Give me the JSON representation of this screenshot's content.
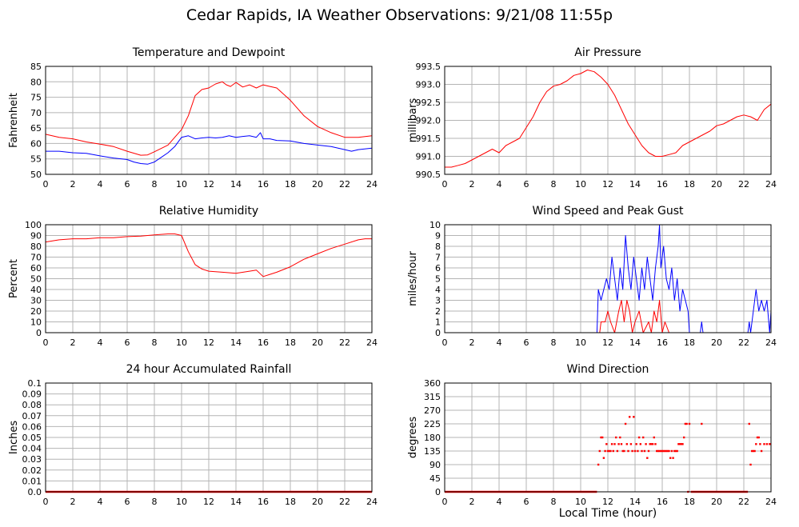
{
  "page": {
    "title": "Cedar Rapids, IA Weather Observations: 9/21/08 11:55p",
    "xlabel": "Local Time (hour)"
  },
  "chart_data": [
    {
      "id": "temp",
      "type": "line",
      "title": "Temperature and Dewpoint",
      "ylabel": "Fahrenheit",
      "xlim": [
        0,
        24
      ],
      "ylim": [
        50,
        85
      ],
      "xticks": [
        0,
        2,
        4,
        6,
        8,
        10,
        12,
        14,
        16,
        18,
        20,
        22,
        24
      ],
      "yticks": [
        50,
        55,
        60,
        65,
        70,
        75,
        80,
        85
      ],
      "ytick_labels": [
        "50",
        "55",
        "60",
        "65",
        "70",
        "75",
        "80",
        "85"
      ],
      "grid": true,
      "series": [
        {
          "color": "#ff0000",
          "style": "line",
          "x": [
            0,
            1,
            2,
            3,
            4,
            5,
            6,
            7,
            7.5,
            8,
            9,
            9.5,
            10,
            10.5,
            11,
            11.5,
            12,
            12.5,
            13,
            13.3,
            13.6,
            14,
            14.5,
            15,
            15.5,
            16,
            16.5,
            17,
            18,
            19,
            20,
            21,
            22,
            22.5,
            23,
            24
          ],
          "y": [
            63,
            62,
            61.5,
            60.5,
            59.8,
            59,
            57.5,
            56.2,
            56.3,
            57.3,
            59.5,
            62,
            64.5,
            69,
            75.5,
            77.5,
            78,
            79.3,
            80,
            79,
            78.5,
            79.8,
            78.3,
            79,
            78,
            79,
            78.5,
            78,
            74,
            69,
            65.5,
            63.5,
            62,
            62,
            62,
            62.5
          ]
        },
        {
          "color": "#0000ff",
          "style": "line",
          "x": [
            0,
            1,
            2,
            3,
            4,
            5,
            6,
            6.5,
            7,
            7.5,
            8,
            8.5,
            9,
            9.5,
            10,
            10.5,
            11,
            11.5,
            12,
            12.5,
            13,
            13.5,
            14,
            14.5,
            15,
            15.5,
            15.8,
            16,
            16.5,
            17,
            18,
            19,
            20,
            21,
            22,
            22.5,
            23,
            24
          ],
          "y": [
            57.5,
            57.5,
            57,
            56.8,
            56,
            55.3,
            54.8,
            54,
            53.5,
            53.3,
            54,
            55.5,
            57,
            59,
            62,
            62.5,
            61.5,
            61.8,
            62,
            61.8,
            62,
            62.5,
            62,
            62.3,
            62.5,
            62,
            63.5,
            61.5,
            61.5,
            61,
            60.8,
            60,
            59.5,
            59,
            58,
            57.5,
            58,
            58.5
          ]
        }
      ]
    },
    {
      "id": "pressure",
      "type": "line",
      "title": "Air Pressure",
      "ylabel": "millibars",
      "xlim": [
        0,
        24
      ],
      "ylim": [
        990.5,
        993.5
      ],
      "xticks": [
        0,
        2,
        4,
        6,
        8,
        10,
        12,
        14,
        16,
        18,
        20,
        22,
        24
      ],
      "yticks": [
        990.5,
        991,
        991.5,
        992,
        992.5,
        993,
        993.5
      ],
      "ytick_labels": [
        "990.5",
        "991.0",
        "991.5",
        "992.0",
        "992.5",
        "993.0",
        "993.5"
      ],
      "grid": true,
      "series": [
        {
          "color": "#ff0000",
          "style": "line",
          "x": [
            0,
            0.5,
            1,
            1.5,
            2,
            2.5,
            3,
            3.5,
            4,
            4.5,
            5,
            5.5,
            6,
            6.5,
            7,
            7.5,
            8,
            8.5,
            9,
            9.5,
            10,
            10.5,
            11,
            11.5,
            12,
            12.5,
            13,
            13.5,
            14,
            14.5,
            15,
            15.5,
            16,
            16.5,
            17,
            17.5,
            18,
            18.5,
            19,
            19.5,
            20,
            20.5,
            21,
            21.5,
            22,
            22.5,
            23,
            23.5,
            24
          ],
          "y": [
            990.7,
            990.7,
            990.75,
            990.8,
            990.9,
            991.0,
            991.1,
            991.2,
            991.1,
            991.3,
            991.4,
            991.5,
            991.8,
            992.1,
            992.5,
            992.8,
            992.95,
            993.0,
            993.1,
            993.25,
            993.3,
            993.4,
            993.35,
            993.2,
            993.0,
            992.7,
            992.3,
            991.9,
            991.6,
            991.3,
            991.1,
            991.0,
            991.0,
            991.05,
            991.1,
            991.3,
            991.4,
            991.5,
            991.6,
            991.7,
            991.85,
            991.9,
            992.0,
            992.1,
            992.15,
            992.1,
            992.0,
            992.3,
            992.45
          ]
        }
      ]
    },
    {
      "id": "rh",
      "type": "line",
      "title": "Relative Humidity",
      "ylabel": "Percent",
      "xlim": [
        0,
        24
      ],
      "ylim": [
        0,
        100
      ],
      "xticks": [
        0,
        2,
        4,
        6,
        8,
        10,
        12,
        14,
        16,
        18,
        20,
        22,
        24
      ],
      "yticks": [
        0,
        10,
        20,
        30,
        40,
        50,
        60,
        70,
        80,
        90,
        100
      ],
      "ytick_labels": [
        "0",
        "10",
        "20",
        "30",
        "40",
        "50",
        "60",
        "70",
        "80",
        "90",
        "100"
      ],
      "grid": true,
      "series": [
        {
          "color": "#ff0000",
          "style": "line",
          "x": [
            0,
            0.5,
            1,
            2,
            3,
            4,
            5,
            6,
            7,
            8,
            9,
            9.5,
            10,
            10.5,
            11,
            11.5,
            12,
            13,
            14,
            15,
            15.5,
            16,
            16.5,
            17,
            18,
            19,
            20,
            21,
            22,
            23,
            23.5,
            24
          ],
          "y": [
            84,
            85,
            86,
            87,
            87,
            88,
            88,
            89,
            89.5,
            90.5,
            91.5,
            91.5,
            90,
            75,
            63,
            59,
            57,
            56,
            55,
            57,
            58,
            52,
            54,
            56,
            61,
            68,
            73,
            78,
            82,
            86,
            87,
            87
          ]
        }
      ]
    },
    {
      "id": "wind",
      "type": "line",
      "title": "Wind Speed and Peak Gust",
      "ylabel": "miles/hour",
      "xlim": [
        0,
        24
      ],
      "ylim": [
        0,
        10
      ],
      "xticks": [
        0,
        2,
        4,
        6,
        8,
        10,
        12,
        14,
        16,
        18,
        20,
        22,
        24
      ],
      "yticks": [
        0,
        1,
        2,
        3,
        4,
        5,
        6,
        7,
        8,
        9,
        10
      ],
      "ytick_labels": [
        "0",
        "1",
        "2",
        "3",
        "4",
        "5",
        "6",
        "7",
        "8",
        "9",
        "10"
      ],
      "grid": true,
      "series": [
        {
          "color": "#0000ff",
          "style": "line",
          "x": [
            0,
            11.2,
            11.3,
            11.5,
            11.7,
            11.9,
            12.1,
            12.3,
            12.5,
            12.7,
            12.9,
            13.1,
            13.3,
            13.5,
            13.7,
            13.9,
            14.1,
            14.3,
            14.5,
            14.7,
            14.9,
            15.1,
            15.3,
            15.5,
            15.7,
            15.8,
            15.9,
            16.1,
            16.3,
            16.5,
            16.7,
            16.9,
            17.1,
            17.3,
            17.5,
            17.7,
            17.9,
            18.0,
            18.8,
            18.9,
            19.0,
            22.3,
            22.4,
            22.5,
            22.7,
            22.9,
            23.1,
            23.3,
            23.5,
            23.7,
            23.9,
            24
          ],
          "y": [
            0,
            0,
            4,
            3,
            4,
            5,
            4,
            7,
            5,
            3,
            6,
            4,
            9,
            6,
            4,
            7,
            5,
            3,
            6,
            4,
            7,
            5,
            3,
            6,
            8,
            10,
            6,
            8,
            5,
            4,
            6,
            3,
            5,
            2,
            4,
            3,
            2,
            0,
            0,
            1,
            0,
            0,
            1,
            0,
            2,
            4,
            2,
            3,
            2,
            3,
            0,
            2
          ]
        },
        {
          "color": "#ff0000",
          "style": "line",
          "x": [
            0,
            11.4,
            11.5,
            11.8,
            12.0,
            12.2,
            12.5,
            12.8,
            13.0,
            13.2,
            13.4,
            13.6,
            13.8,
            14.0,
            14.3,
            14.6,
            15.0,
            15.2,
            15.4,
            15.6,
            15.8,
            16.0,
            16.2,
            16.5,
            17.0,
            24
          ],
          "y": [
            0,
            0,
            1,
            1,
            2,
            1,
            0,
            2,
            3,
            1,
            3,
            2,
            0,
            1,
            2,
            0,
            1,
            0,
            2,
            1,
            3,
            0,
            1,
            0,
            0,
            0
          ]
        }
      ]
    },
    {
      "id": "rain",
      "type": "line",
      "title": "24 hour Accumulated Rainfall",
      "ylabel": "Inches",
      "xlim": [
        0,
        24
      ],
      "ylim": [
        0,
        0.1
      ],
      "xticks": [
        0,
        2,
        4,
        6,
        8,
        10,
        12,
        14,
        16,
        18,
        20,
        22,
        24
      ],
      "yticks": [
        0,
        0.01,
        0.02,
        0.03,
        0.04,
        0.05,
        0.06,
        0.07,
        0.08,
        0.09,
        0.1
      ],
      "ytick_labels": [
        "0.0",
        "0.01",
        "0.02",
        "0.03",
        "0.04",
        "0.05",
        "0.06",
        "0.07",
        "0.08",
        "0.09",
        "0.1"
      ],
      "grid": true,
      "series": [
        {
          "color": "#ff0000",
          "style": "line",
          "x": [
            0,
            24
          ],
          "y": [
            0,
            0
          ]
        }
      ]
    },
    {
      "id": "winddir",
      "type": "scatter",
      "title": "Wind Direction",
      "ylabel": "degrees",
      "xlim": [
        0,
        24
      ],
      "ylim": [
        0,
        360
      ],
      "xticks": [
        0,
        2,
        4,
        6,
        8,
        10,
        12,
        14,
        16,
        18,
        20,
        22,
        24
      ],
      "yticks": [
        0,
        45,
        90,
        135,
        180,
        225,
        270,
        315,
        360
      ],
      "ytick_labels": [
        "0",
        "45",
        "90",
        "135",
        "180",
        "225",
        "270",
        "315",
        "360"
      ],
      "grid": true,
      "series": [
        {
          "color": "#ff0000",
          "style": "line",
          "x": [
            0,
            11.2
          ],
          "y": [
            0,
            0
          ]
        },
        {
          "color": "#ff0000",
          "style": "line",
          "x": [
            18.1,
            22.3
          ],
          "y": [
            0,
            0
          ]
        },
        {
          "color": "#ff0000",
          "style": "points",
          "x": [
            11.3,
            11.4,
            11.5,
            11.6,
            11.7,
            11.8,
            11.9,
            12.0,
            12.1,
            12.2,
            12.3,
            12.4,
            12.5,
            12.6,
            12.7,
            12.8,
            12.9,
            13.0,
            13.1,
            13.2,
            13.3,
            13.4,
            13.5,
            13.6,
            13.7,
            13.8,
            13.9,
            14.0,
            14.1,
            14.2,
            14.3,
            14.4,
            14.5,
            14.6,
            14.7,
            14.8,
            14.9,
            15.0,
            15.1,
            15.2,
            15.3,
            15.4,
            15.5,
            15.6,
            15.7,
            15.8,
            15.9,
            16.0,
            16.1,
            16.2,
            16.3,
            16.4,
            16.5,
            16.6,
            16.7,
            16.8,
            16.9,
            17.0,
            17.1,
            17.2,
            17.3,
            17.4,
            17.5,
            17.6,
            17.7,
            17.8,
            17.9,
            18.0,
            18.9,
            22.4,
            22.5,
            22.6,
            22.7,
            22.8,
            22.9,
            23.0,
            23.1,
            23.2,
            23.3,
            23.5,
            23.7,
            23.9
          ],
          "y": [
            90,
            135,
            180,
            180,
            112,
            135,
            158,
            135,
            135,
            135,
            158,
            135,
            158,
            180,
            135,
            158,
            180,
            158,
            135,
            135,
            225,
            158,
            135,
            248,
            158,
            135,
            248,
            135,
            158,
            135,
            180,
            158,
            135,
            180,
            135,
            158,
            112,
            135,
            158,
            158,
            158,
            180,
            158,
            135,
            135,
            135,
            135,
            135,
            135,
            135,
            135,
            135,
            135,
            112,
            135,
            112,
            135,
            135,
            135,
            158,
            158,
            158,
            158,
            180,
            225,
            225,
            0,
            225,
            225,
            225,
            90,
            135,
            135,
            135,
            158,
            180,
            180,
            158,
            135,
            158,
            158,
            158
          ]
        }
      ]
    }
  ]
}
